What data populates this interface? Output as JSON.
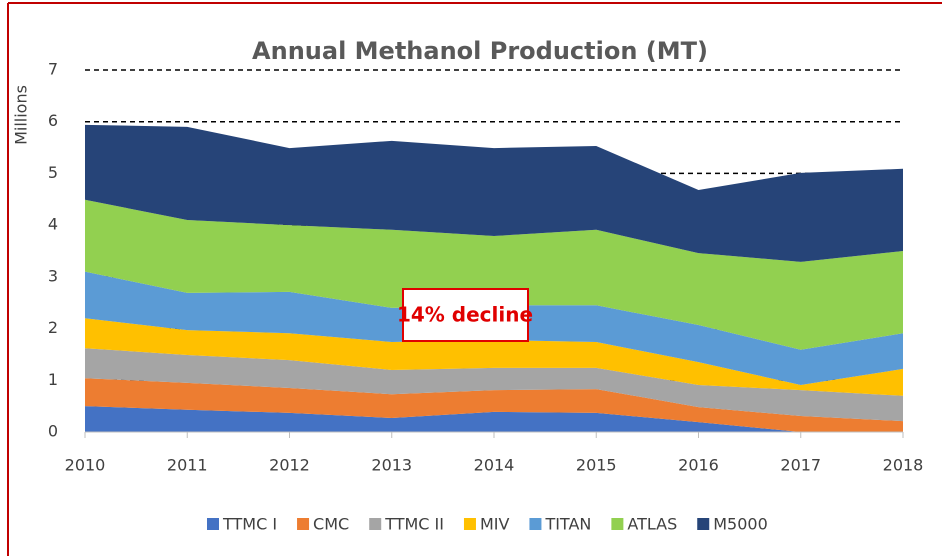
{
  "chart_data": {
    "type": "stacked_area",
    "title": "Annual Methanol Production (MT)",
    "y_label": "Millions",
    "annotation": "14% decline",
    "categories": [
      "2010",
      "2011",
      "2012",
      "2013",
      "2014",
      "2015",
      "2016",
      "2017",
      "2018"
    ],
    "ylim": [
      0,
      7
    ],
    "yticks": [
      0,
      1,
      2,
      3,
      4,
      5,
      6,
      7
    ],
    "grid": true,
    "legend": "bottom",
    "series": [
      {
        "name": "TTMC I",
        "color": "#4472c4",
        "values": [
          0.5,
          0.43,
          0.37,
          0.27,
          0.39,
          0.37,
          0.19,
          0,
          0
        ]
      },
      {
        "name": "CMC",
        "color": "#ed7d31",
        "values": [
          0.54,
          0.52,
          0.48,
          0.46,
          0.42,
          0.46,
          0.29,
          0.31,
          0.21
        ]
      },
      {
        "name": "TTMC II",
        "color": "#a5a5a5",
        "values": [
          0.58,
          0.54,
          0.54,
          0.47,
          0.43,
          0.41,
          0.43,
          0.5,
          0.49
        ]
      },
      {
        "name": "MIV",
        "color": "#ffc000",
        "values": [
          0.58,
          0.48,
          0.52,
          0.54,
          0.54,
          0.5,
          0.44,
          0.1,
          0.52
        ]
      },
      {
        "name": "TITAN",
        "color": "#5b9bd5",
        "values": [
          0.9,
          0.72,
          0.8,
          0.66,
          0.67,
          0.71,
          0.72,
          0.68,
          0.69
        ]
      },
      {
        "name": "ATLAS",
        "color": "#92d050",
        "values": [
          1.39,
          1.41,
          1.29,
          1.51,
          1.34,
          1.46,
          1.39,
          1.7,
          1.59
        ]
      },
      {
        "name": "M5000",
        "color": "#264478",
        "values": [
          1.45,
          1.8,
          1.49,
          1.72,
          1.7,
          1.62,
          1.22,
          1.72,
          1.59
        ]
      }
    ]
  }
}
